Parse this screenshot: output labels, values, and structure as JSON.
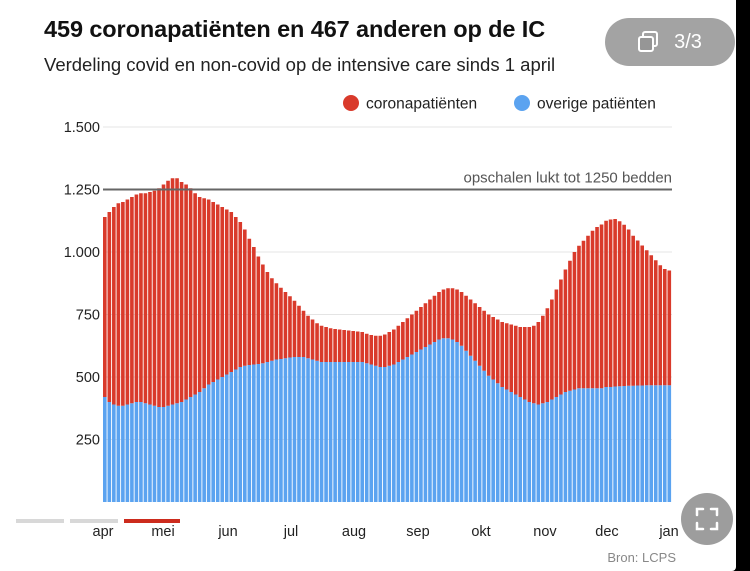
{
  "title": "459 coronapatiënten en 467 anderen op de IC",
  "subtitle": "Verdeling covid en non-covid op de intensive care sinds 1 april",
  "source": "Bron: LCPS",
  "counter": {
    "label": "3/3",
    "icon": "gallery-icon"
  },
  "expand_icon": "expand-icon",
  "colors": {
    "covid": "#d93a2b",
    "other": "#5ba3f0",
    "capacity_line": "#666666"
  },
  "chart_data": {
    "type": "bar",
    "stacked": true,
    "title": "459 coronapatiënten en 467 anderen op de IC",
    "subtitle": "Verdeling covid en non-covid op de intensive care sinds 1 april",
    "x_tick_labels": [
      "apr",
      "mei",
      "jun",
      "jul",
      "aug",
      "sep",
      "okt",
      "nov",
      "dec",
      "jan"
    ],
    "y_tick_labels": [
      "250",
      "500",
      "750",
      "1.000",
      "1.250",
      "1.500"
    ],
    "ylim": [
      0,
      1500
    ],
    "grid": true,
    "legend_position": "top-right",
    "annotation": {
      "text": "opschalen lukt tot 1250 bedden",
      "value": 1250
    },
    "series": [
      {
        "name": "coronapatiënten",
        "color": "#d93a2b",
        "values": [
          720,
          760,
          790,
          810,
          815,
          820,
          825,
          830,
          835,
          840,
          850,
          860,
          875,
          890,
          900,
          905,
          900,
          880,
          860,
          835,
          805,
          780,
          760,
          740,
          720,
          700,
          680,
          660,
          640,
          610,
          580,
          545,
          505,
          470,
          430,
          395,
          360,
          330,
          305,
          285,
          265,
          245,
          225,
          205,
          185,
          170,
          160,
          150,
          145,
          140,
          135,
          132,
          130,
          128,
          126,
          124,
          122,
          120,
          118,
          118,
          120,
          125,
          130,
          135,
          140,
          145,
          150,
          155,
          160,
          165,
          170,
          175,
          180,
          185,
          190,
          195,
          200,
          205,
          210,
          215,
          220,
          225,
          230,
          235,
          240,
          245,
          250,
          255,
          260,
          265,
          270,
          275,
          280,
          290,
          300,
          310,
          330,
          350,
          375,
          400,
          430,
          460,
          490,
          520,
          550,
          570,
          590,
          610,
          630,
          645,
          655,
          665,
          670,
          670,
          660,
          645,
          625,
          600,
          580,
          560,
          540,
          520,
          500,
          480,
          465,
          459
        ]
      },
      {
        "name": "overige patiënten",
        "color": "#5ba3f0",
        "values": [
          420,
          400,
          390,
          385,
          385,
          390,
          395,
          400,
          400,
          395,
          390,
          385,
          380,
          380,
          385,
          390,
          395,
          400,
          410,
          420,
          430,
          440,
          455,
          470,
          480,
          490,
          500,
          510,
          520,
          530,
          540,
          545,
          548,
          550,
          552,
          555,
          560,
          565,
          570,
          572,
          575,
          578,
          580,
          580,
          580,
          575,
          570,
          565,
          560,
          560,
          560,
          560,
          560,
          560,
          560,
          560,
          560,
          560,
          555,
          550,
          545,
          540,
          540,
          545,
          550,
          560,
          570,
          580,
          590,
          600,
          610,
          620,
          630,
          640,
          650,
          655,
          655,
          650,
          640,
          625,
          605,
          585,
          565,
          545,
          525,
          505,
          490,
          475,
          460,
          450,
          440,
          430,
          420,
          410,
          400,
          395,
          390,
          395,
          400,
          410,
          420,
          430,
          440,
          445,
          450,
          455,
          455,
          455,
          455,
          455,
          455,
          460,
          460,
          462,
          463,
          464,
          465,
          465,
          466,
          466,
          467,
          467,
          467,
          467,
          467,
          467
        ]
      }
    ]
  }
}
